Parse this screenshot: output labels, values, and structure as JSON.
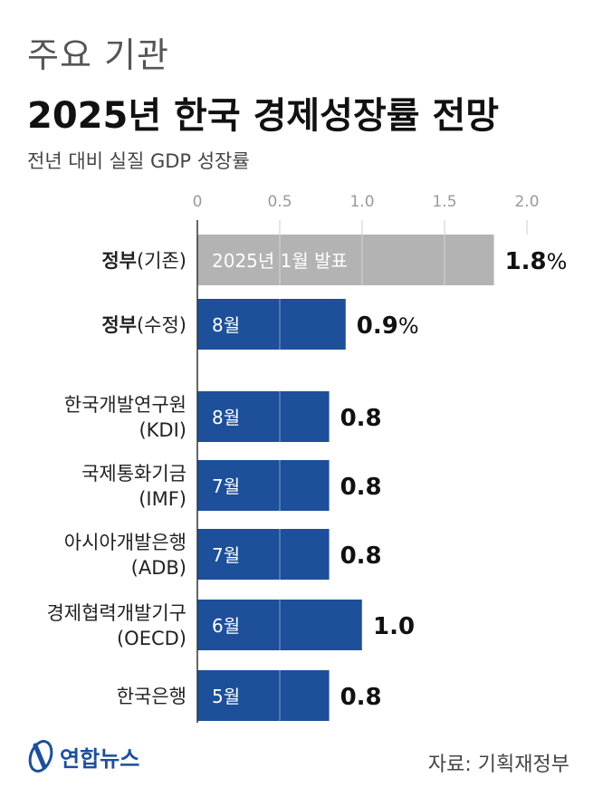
{
  "kicker": "주요 기관",
  "title": "2025년 한국 경제성장률 전망",
  "subtitle": "전년 대비 실질 GDP 성장률",
  "source": "자료: 기획재정부",
  "logo_text": "연합뉴스",
  "colors": {
    "gray": "#b3b3b3",
    "blue": "#1d4f9a",
    "axis": "#9a9a9a"
  },
  "chart_data": {
    "type": "bar",
    "orientation": "horizontal",
    "xlim": [
      0,
      2.0
    ],
    "xticks": [
      "0",
      "0.5",
      "1.0",
      "1.5",
      "2.0"
    ],
    "rows": [
      {
        "bold": "정부",
        "paren": "(기존)",
        "line2": "",
        "value": 1.8,
        "value_label": "1.8",
        "unit": "%",
        "bar_label": "2025년 1월 발표",
        "color": "gray"
      },
      {
        "bold": "정부",
        "paren": "(수정)",
        "line2": "",
        "value": 0.9,
        "value_label": "0.9",
        "unit": "%",
        "bar_label": "8월",
        "color": "blue"
      },
      {
        "bold": "",
        "paren": "한국개발연구원",
        "line2": "(KDI)",
        "value": 0.8,
        "value_label": "0.8",
        "unit": "",
        "bar_label": "8월",
        "color": "blue"
      },
      {
        "bold": "",
        "paren": "국제통화기금",
        "line2": "(IMF)",
        "value": 0.8,
        "value_label": "0.8",
        "unit": "",
        "bar_label": "7월",
        "color": "blue"
      },
      {
        "bold": "",
        "paren": "아시아개발은행",
        "line2": "(ADB)",
        "value": 0.8,
        "value_label": "0.8",
        "unit": "",
        "bar_label": "7월",
        "color": "blue"
      },
      {
        "bold": "",
        "paren": "경제협력개발기구",
        "line2": "(OECD)",
        "value": 1.0,
        "value_label": "1.0",
        "unit": "",
        "bar_label": "6월",
        "color": "blue"
      },
      {
        "bold": "",
        "paren": "한국은행",
        "line2": "",
        "value": 0.8,
        "value_label": "0.8",
        "unit": "",
        "bar_label": "5월",
        "color": "blue"
      }
    ]
  }
}
